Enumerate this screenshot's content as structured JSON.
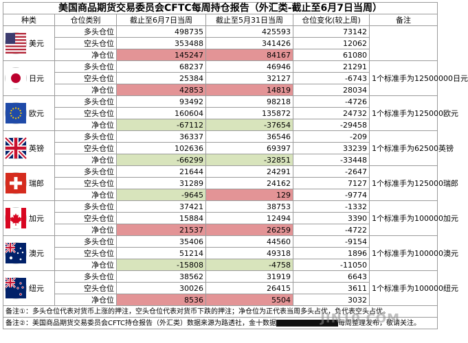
{
  "title": "美国商品期货交易委员会CFTC每周持仓报告（外汇类-截止至6月7日当周）",
  "headers": [
    "种类",
    "仓位类别",
    "截止至6月7日当周",
    "截止至5月31日当周",
    "仓位变化(较上周)",
    "备注"
  ],
  "currencies": [
    {
      "name": "美元",
      "flag": "us-flag-icon",
      "note": "",
      "rows": [
        {
          "type": "多头仓位",
          "cur": "498735",
          "prev": "425593",
          "chg": "73142"
        },
        {
          "type": "空头仓位",
          "cur": "353488",
          "prev": "341426",
          "chg": "12062"
        },
        {
          "type": "净仓位",
          "cur": "145247",
          "prev": "84167",
          "chg": "61080"
        }
      ]
    },
    {
      "name": "日元",
      "flag": "jp-flag-icon",
      "note": "1个标准手为12500000日元",
      "rows": [
        {
          "type": "多头仓位",
          "cur": "68237",
          "prev": "46946",
          "chg": "21291"
        },
        {
          "type": "空头仓位",
          "cur": "25384",
          "prev": "32127",
          "chg": "-6743"
        },
        {
          "type": "净仓位",
          "cur": "42853",
          "prev": "14819",
          "chg": "28034"
        }
      ]
    },
    {
      "name": "欧元",
      "flag": "eu-flag-icon",
      "note": "1个标准手为125000欧元",
      "rows": [
        {
          "type": "多头仓位",
          "cur": "93492",
          "prev": "98218",
          "chg": "-4726"
        },
        {
          "type": "空头仓位",
          "cur": "160604",
          "prev": "135872",
          "chg": "24732"
        },
        {
          "type": "净仓位",
          "cur": "-67112",
          "prev": "-37654",
          "chg": "-29458"
        }
      ]
    },
    {
      "name": "英镑",
      "flag": "uk-flag-icon",
      "note": "1个标准手为62500英镑",
      "rows": [
        {
          "type": "多头仓位",
          "cur": "36337",
          "prev": "36546",
          "chg": "-209"
        },
        {
          "type": "空头仓位",
          "cur": "102636",
          "prev": "69397",
          "chg": "33239"
        },
        {
          "type": "净仓位",
          "cur": "-66299",
          "prev": "-32851",
          "chg": "-33448"
        }
      ]
    },
    {
      "name": "瑞郎",
      "flag": "ch-flag-icon",
      "note": "1个标准手为125000瑞郎",
      "rows": [
        {
          "type": "多头仓位",
          "cur": "21644",
          "prev": "24291",
          "chg": "-2647"
        },
        {
          "type": "空头仓位",
          "cur": "31289",
          "prev": "24162",
          "chg": "7127"
        },
        {
          "type": "净仓位",
          "cur": "-9645",
          "prev": "129",
          "chg": "-9774"
        }
      ]
    },
    {
      "name": "加元",
      "flag": "ca-flag-icon",
      "note": "1个标准手为100000加元",
      "rows": [
        {
          "type": "多头仓位",
          "cur": "37421",
          "prev": "38753",
          "chg": "-1332"
        },
        {
          "type": "空头仓位",
          "cur": "15884",
          "prev": "12494",
          "chg": "3390"
        },
        {
          "type": "净仓位",
          "cur": "21537",
          "prev": "26259",
          "chg": "-4722"
        }
      ]
    },
    {
      "name": "澳元",
      "flag": "au-flag-icon",
      "note": "1个标准手为100000澳元",
      "rows": [
        {
          "type": "多头仓位",
          "cur": "35406",
          "prev": "44560",
          "chg": "-9154"
        },
        {
          "type": "空头仓位",
          "cur": "51214",
          "prev": "49318",
          "chg": "1896"
        },
        {
          "type": "净仓位",
          "cur": "-15808",
          "prev": "-4758",
          "chg": "-11050"
        }
      ]
    },
    {
      "name": "纽元",
      "flag": "nz-flag-icon",
      "note": "1个标准手为100000纽元",
      "rows": [
        {
          "type": "多头仓位",
          "cur": "38562",
          "prev": "31919",
          "chg": "6643"
        },
        {
          "type": "空头仓位",
          "cur": "30026",
          "prev": "26415",
          "chg": "3611"
        },
        {
          "type": "净仓位",
          "cur": "8536",
          "prev": "5504",
          "chg": "3032"
        }
      ]
    }
  ],
  "footnotes": {
    "note1": "备注①：多头仓位代表对货币上涨的押注，空头仓位代表对货币下跌的押注；净仓位为正代表当周多头占优，负代表空头占优。",
    "note2_a": "备注②：美国商品期货交易委员会CFTC持仓报告（外汇类）数据来源为路透社，金十数据",
    "note2_b": "每周整理发布，敬请关注。"
  },
  "watermark": "JIN10.COM",
  "colors": {
    "net_positive": "#e39496",
    "net_negative": "#d8e4bc",
    "border": "#9a9a9a"
  }
}
